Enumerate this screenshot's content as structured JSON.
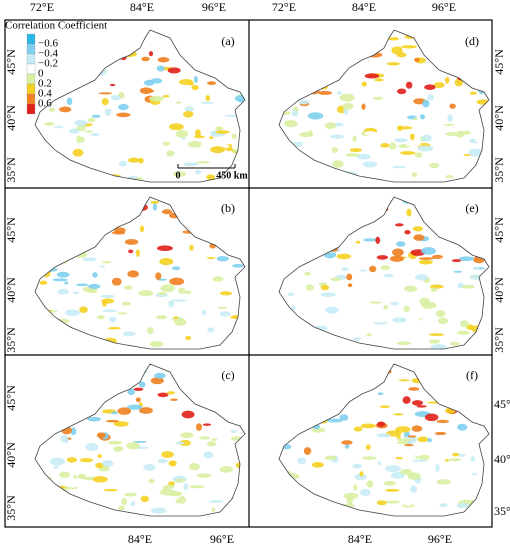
{
  "legend": {
    "title": "Correlation Coefficient",
    "labels": [
      "−0.6",
      "−0.4",
      "−0.2",
      "0",
      "0.2",
      "0.4",
      "0.6"
    ],
    "colors": [
      "#29b6e8",
      "#7fd0ef",
      "#c8ecf5",
      "#ffffff",
      "#d9f0a3",
      "#f5d020",
      "#f08020",
      "#e0201a"
    ]
  },
  "lon_labels": [
    "72°E",
    "84°E",
    "96°E"
  ],
  "lat_labels": [
    "45°N",
    "40°N",
    "35°N"
  ],
  "scale_bar": {
    "start": "0",
    "end": "450 km"
  },
  "panels": [
    {
      "label": "(a)"
    },
    {
      "label": "(b)"
    },
    {
      "label": "(c)"
    },
    {
      "label": "(d)"
    },
    {
      "label": "(e)"
    },
    {
      "label": "(f)"
    }
  ]
}
